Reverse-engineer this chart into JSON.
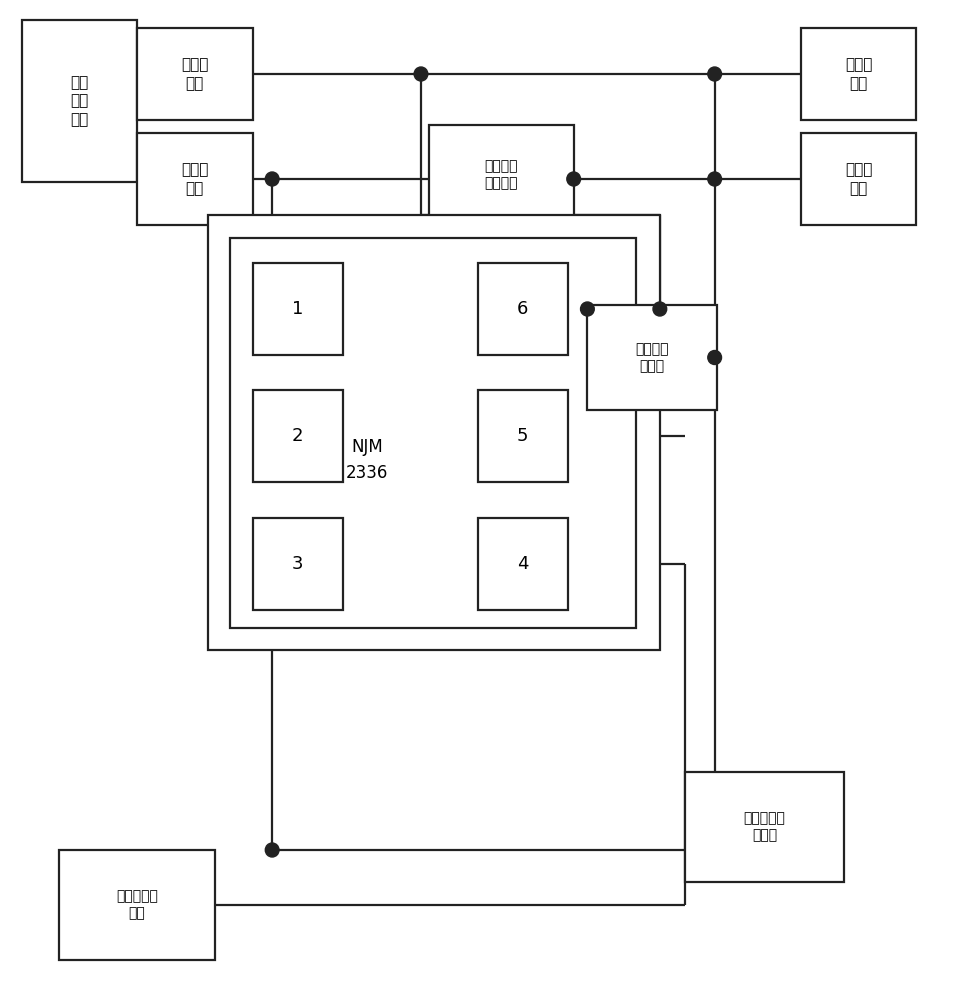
{
  "fig_w": 9.79,
  "fig_h": 10.0,
  "dpi": 100,
  "lw": 1.6,
  "dot_r": 0.007,
  "boxes": {
    "vin": [
      0.022,
      0.818,
      0.118,
      0.162,
      "电压\n输入\n电路",
      11
    ],
    "in1": [
      0.14,
      0.88,
      0.118,
      0.092,
      "第一输\n入端",
      11
    ],
    "in2": [
      0.14,
      0.775,
      0.118,
      0.092,
      "第二输\n入端",
      11
    ],
    "oc": [
      0.438,
      0.775,
      0.148,
      0.1,
      "输出电流\n调节电路",
      10
    ],
    "out1": [
      0.818,
      0.88,
      0.118,
      0.092,
      "第一输\n出端",
      11
    ],
    "out2": [
      0.818,
      0.775,
      0.118,
      0.092,
      "第二输\n出端",
      11
    ],
    "njmo": [
      0.212,
      0.35,
      0.462,
      0.435,
      "",
      11
    ],
    "njmi": [
      0.235,
      0.372,
      0.415,
      0.39,
      "",
      11
    ],
    "p1": [
      0.258,
      0.645,
      0.092,
      0.092,
      "1",
      13
    ],
    "p2": [
      0.258,
      0.518,
      0.092,
      0.092,
      "2",
      13
    ],
    "p3": [
      0.258,
      0.39,
      0.092,
      0.092,
      "3",
      13
    ],
    "p6": [
      0.488,
      0.645,
      0.092,
      0.092,
      "6",
      13
    ],
    "p5": [
      0.488,
      0.518,
      0.092,
      0.092,
      "5",
      13
    ],
    "p4": [
      0.488,
      0.39,
      0.092,
      0.092,
      "4",
      13
    ],
    "cc": [
      0.6,
      0.59,
      0.132,
      0.105,
      "电流环补\n偿电路",
      10
    ],
    "vc": [
      0.06,
      0.04,
      0.16,
      0.11,
      "电压环补偿\n电路",
      10
    ],
    "ov": [
      0.7,
      0.118,
      0.162,
      0.11,
      "输出电压调\n节电路",
      10
    ]
  },
  "njm_txt": [
    0.375,
    0.54,
    "NJM\n2336",
    12
  ]
}
